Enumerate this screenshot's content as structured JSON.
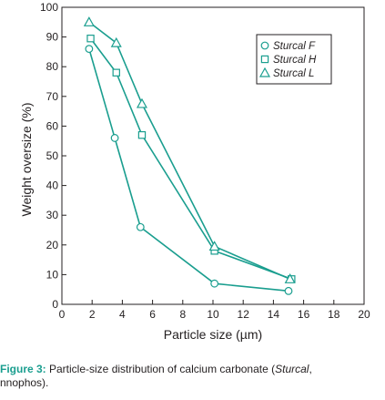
{
  "chart_data": {
    "type": "line",
    "xlabel": "Particle size (µm)",
    "ylabel": "Weight oversize (%)",
    "xlim": [
      0,
      20
    ],
    "ylim": [
      0,
      100
    ],
    "x_ticks": [
      "0",
      "2",
      "4",
      "6",
      "8",
      "10",
      "12",
      "14",
      "16",
      "18",
      "20"
    ],
    "y_ticks": [
      "0",
      "10",
      "20",
      "30",
      "40",
      "50",
      "60",
      "70",
      "80",
      "90",
      "100"
    ],
    "legend_position": "top-right",
    "series": [
      {
        "name": "Sturcal F",
        "marker": "circle",
        "x": [
          1.8,
          3.5,
          5.2,
          10.1,
          15.0
        ],
        "y": [
          86,
          56,
          26,
          7,
          4.5
        ]
      },
      {
        "name": "Sturcal H",
        "marker": "square",
        "x": [
          1.9,
          3.6,
          5.3,
          10.1,
          15.2
        ],
        "y": [
          89.5,
          78,
          57,
          18,
          8.5
        ]
      },
      {
        "name": "Sturcal L",
        "marker": "triangle",
        "x": [
          1.8,
          3.6,
          5.3,
          10.1,
          15.1
        ],
        "y": [
          95,
          88,
          67.5,
          19.5,
          8.5
        ]
      }
    ]
  },
  "colors": {
    "series": "#1a9e8f",
    "axis": "#231f20",
    "caption_label": "#1a9e8f"
  },
  "caption": {
    "label": "Figure 3:",
    "text_before": " Particle-size distribution of calcium carbonate (",
    "italic": "Sturcal",
    "text_after": ",",
    "line2": "nnophos)."
  }
}
